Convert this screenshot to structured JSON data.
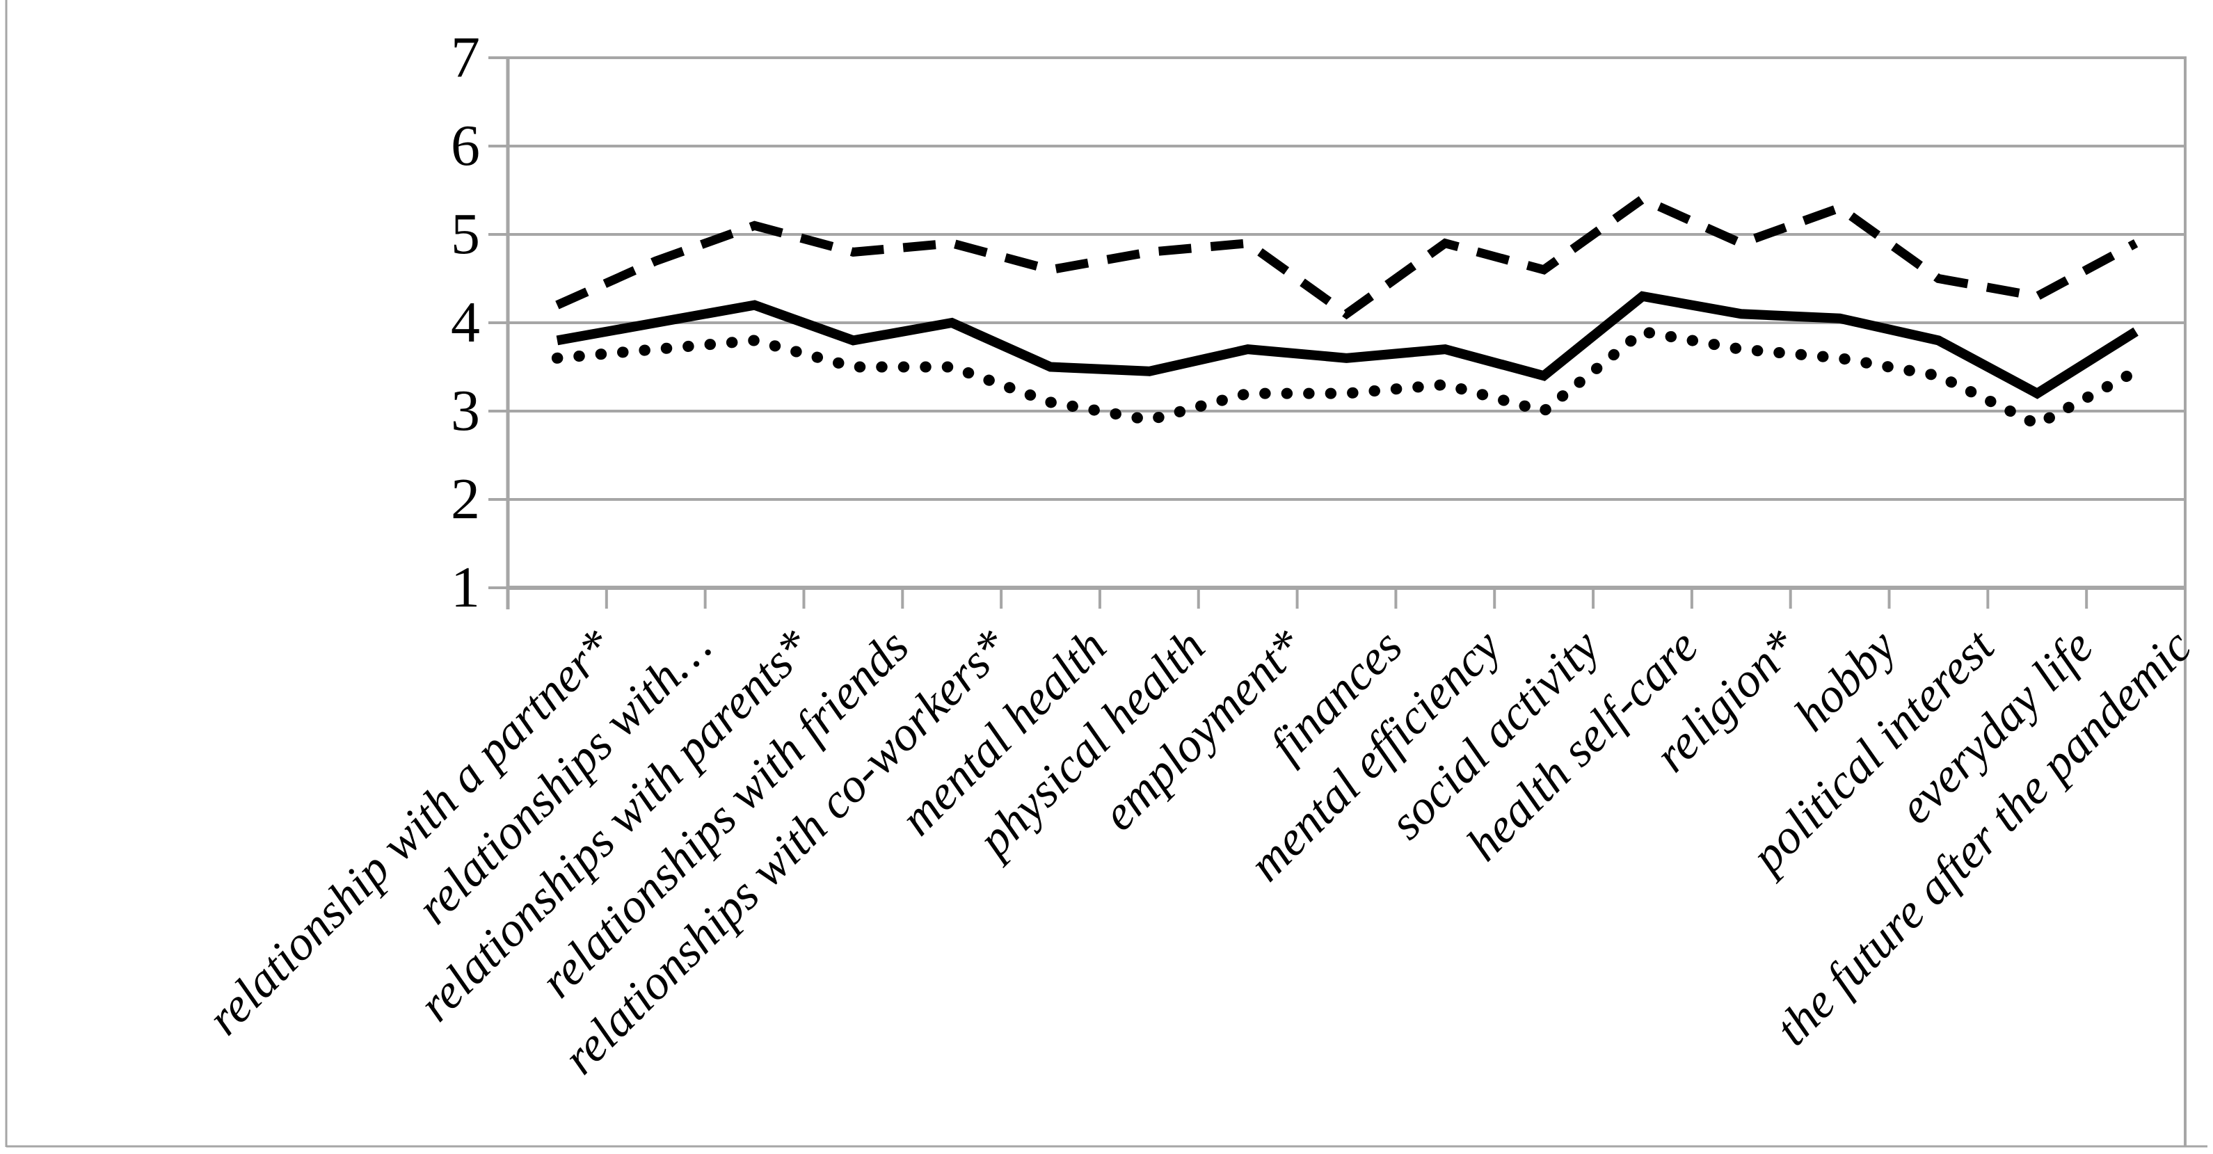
{
  "figure": {
    "background_color": "#ffffff",
    "frame_color": "#a6a6a6",
    "title": ""
  },
  "chart_data": {
    "type": "line",
    "title": "",
    "xlabel": "",
    "ylabel": "",
    "ylim": [
      1,
      7
    ],
    "yticks": [
      "1",
      "2",
      "3",
      "4",
      "5",
      "6",
      "7"
    ],
    "grid": true,
    "legend": false,
    "line_color": "#000000",
    "grid_color": "#a6a6a6",
    "categories": [
      "relationship with a partner*",
      "relationships with…",
      "relationships with parents*",
      "relationships with friends",
      "relationships with co-workers*",
      "mental health",
      "physical health",
      "employment*",
      "finances",
      "mental efficiency",
      "social activity",
      "health self-care",
      "religion*",
      "hobby",
      "political interest",
      "everyday life",
      "the future after the pandemic"
    ],
    "series": [
      {
        "style": "dashed",
        "values": [
          4.2,
          4.7,
          5.1,
          4.8,
          4.9,
          4.6,
          4.8,
          4.9,
          4.1,
          4.9,
          4.6,
          5.4,
          4.9,
          5.3,
          4.5,
          4.3,
          4.9
        ]
      },
      {
        "style": "solid",
        "values": [
          3.8,
          4.0,
          4.2,
          3.8,
          4.0,
          3.5,
          3.45,
          3.7,
          3.6,
          3.7,
          3.4,
          4.3,
          4.1,
          4.05,
          3.8,
          3.2,
          3.9
        ]
      },
      {
        "style": "dotted",
        "values": [
          3.6,
          3.7,
          3.8,
          3.5,
          3.5,
          3.1,
          2.9,
          3.2,
          3.2,
          3.3,
          3.0,
          3.9,
          3.7,
          3.6,
          3.4,
          2.85,
          3.45
        ]
      }
    ]
  }
}
